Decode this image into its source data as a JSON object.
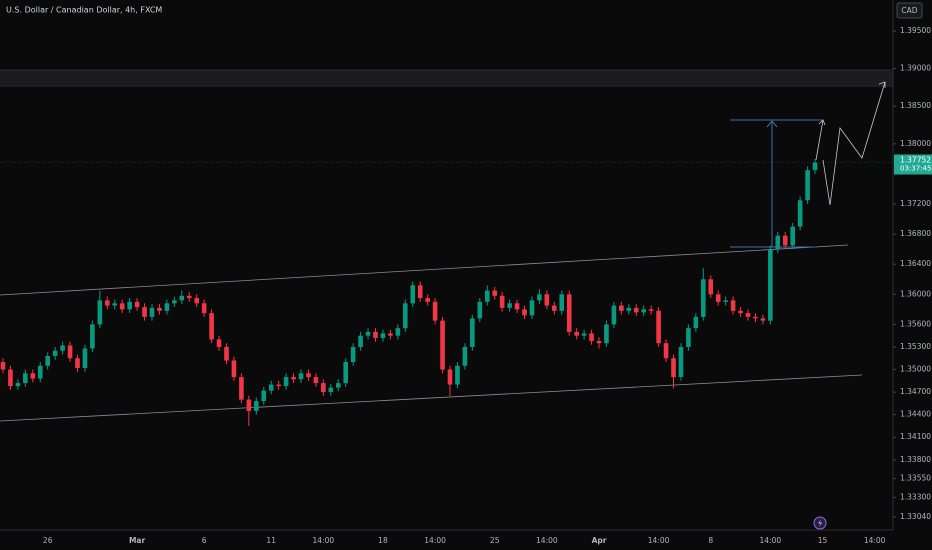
{
  "chart_data": {
    "type": "candlestick",
    "title": "U.S. Dollar / Canadian Dollar, 4h, FXCM",
    "currency": "CAD",
    "countdown": "03:37:45",
    "last_price": 1.37752,
    "up_color": "#089981",
    "down_color": "#f23645",
    "last_price_color": "#22ab94",
    "categories": [
      null,
      null,
      null,
      null,
      null,
      null,
      "26",
      null,
      null,
      null,
      null,
      null,
      null,
      null,
      null,
      null,
      null,
      null,
      "Mar",
      null,
      null,
      null,
      null,
      null,
      null,
      null,
      null,
      "6",
      null,
      null,
      null,
      null,
      null,
      null,
      null,
      null,
      "11",
      null,
      null,
      null,
      null,
      null,
      null,
      "14:00",
      null,
      null,
      null,
      null,
      null,
      null,
      null,
      "18",
      null,
      null,
      null,
      null,
      null,
      null,
      "14:00",
      null,
      null,
      null,
      null,
      null,
      null,
      null,
      "25",
      null,
      null,
      null,
      null,
      null,
      null,
      "14:00",
      null,
      null,
      null,
      null,
      null,
      null,
      "Apr",
      null,
      null,
      null,
      null,
      null,
      null,
      null,
      "14:00",
      null,
      null,
      null,
      null,
      null,
      null,
      "8",
      null,
      null,
      null,
      null,
      null,
      null,
      null,
      "14:00",
      null,
      null,
      null,
      null,
      null,
      null,
      "15",
      null,
      null,
      null,
      null,
      null,
      null,
      "14:00",
      null
    ],
    "open": [
      1.351,
      1.35,
      1.3478,
      1.3482,
      1.3495,
      1.3488,
      1.3505,
      1.3518,
      1.3525,
      1.3532,
      1.3515,
      1.3502,
      1.3528,
      1.356,
      1.3592,
      1.3585,
      1.3588,
      1.358,
      1.359,
      1.3583,
      1.357,
      1.3582,
      1.3578,
      1.3588,
      1.3592,
      1.3598,
      1.3595,
      1.3588,
      1.3575,
      1.354,
      1.353,
      1.3512,
      1.349,
      1.346,
      1.3445,
      1.3458,
      1.3472,
      1.348,
      1.3478,
      1.349,
      1.3487,
      1.3495,
      1.349,
      1.3482,
      1.347,
      1.3476,
      1.3482,
      1.351,
      1.353,
      1.3545,
      1.355,
      1.3542,
      1.3548,
      1.3545,
      1.3555,
      1.3588,
      1.3612,
      1.3595,
      1.359,
      1.3565,
      1.35,
      1.348,
      1.3505,
      1.353,
      1.3568,
      1.359,
      1.3605,
      1.3598,
      1.3582,
      1.3588,
      1.358,
      1.3572,
      1.3592,
      1.36,
      1.3585,
      1.3578,
      1.36,
      1.355,
      1.3545,
      1.3548,
      1.3538,
      1.3535,
      1.356,
      1.3585,
      1.3578,
      1.3582,
      1.3576,
      1.358,
      1.3578,
      1.3535,
      1.3515,
      1.349,
      1.353,
      1.3555,
      1.357,
      1.362,
      1.36,
      1.359,
      1.3592,
      1.3578,
      1.3575,
      1.357,
      1.3568,
      1.3565,
      1.366,
      1.3678,
      1.3665,
      1.369,
      1.3725,
      1.3765,
      null,
      null,
      null,
      null,
      null,
      null,
      null,
      null,
      null
    ],
    "high": [
      1.3515,
      1.3505,
      1.3487,
      1.35,
      1.35,
      1.351,
      1.3523,
      1.353,
      1.3537,
      1.3537,
      1.352,
      1.3533,
      1.3565,
      1.3605,
      1.3597,
      1.3593,
      1.3593,
      1.3595,
      1.3595,
      1.3588,
      1.3587,
      1.3587,
      1.3593,
      1.3597,
      1.3605,
      1.3603,
      1.36,
      1.3593,
      1.358,
      1.3545,
      1.3535,
      1.3517,
      1.3495,
      1.3465,
      1.3463,
      1.3477,
      1.3485,
      1.3485,
      1.3495,
      1.3495,
      1.35,
      1.35,
      1.3495,
      1.3487,
      1.3481,
      1.3487,
      1.3515,
      1.3535,
      1.355,
      1.3555,
      1.3555,
      1.3553,
      1.3553,
      1.356,
      1.3593,
      1.3617,
      1.3617,
      1.36,
      1.3595,
      1.357,
      1.3505,
      1.351,
      1.3535,
      1.3573,
      1.3595,
      1.3612,
      1.361,
      1.3603,
      1.3593,
      1.3593,
      1.3585,
      1.3597,
      1.3607,
      1.3605,
      1.359,
      1.3605,
      1.3605,
      1.3555,
      1.3553,
      1.3553,
      1.3543,
      1.3565,
      1.359,
      1.359,
      1.3587,
      1.3587,
      1.3585,
      1.3585,
      1.3583,
      1.354,
      1.352,
      1.3535,
      1.356,
      1.3575,
      1.3635,
      1.3625,
      1.3605,
      1.3597,
      1.3597,
      1.3583,
      1.358,
      1.3575,
      1.3573,
      1.3665,
      1.3683,
      1.3683,
      1.3695,
      1.373,
      1.377,
      1.378,
      null,
      null,
      null,
      null,
      null,
      null,
      null,
      null,
      null
    ],
    "low": [
      1.3495,
      1.3473,
      1.3473,
      1.3477,
      1.3483,
      1.3483,
      1.35,
      1.3513,
      1.352,
      1.351,
      1.3497,
      1.3497,
      1.3523,
      1.3555,
      1.358,
      1.358,
      1.3575,
      1.3575,
      1.3578,
      1.3565,
      1.3565,
      1.3573,
      1.3573,
      1.3583,
      1.3587,
      1.359,
      1.3583,
      1.357,
      1.3535,
      1.3525,
      1.3507,
      1.3485,
      1.3455,
      1.3425,
      1.344,
      1.3453,
      1.3467,
      1.3473,
      1.3473,
      1.3482,
      1.3482,
      1.3485,
      1.3477,
      1.3465,
      1.3465,
      1.3471,
      1.3477,
      1.3505,
      1.3525,
      1.354,
      1.3537,
      1.3537,
      1.354,
      1.354,
      1.355,
      1.3583,
      1.359,
      1.3585,
      1.356,
      1.3495,
      1.3465,
      1.3475,
      1.35,
      1.3525,
      1.3563,
      1.3585,
      1.3593,
      1.3577,
      1.3577,
      1.3575,
      1.3567,
      1.3567,
      1.3587,
      1.358,
      1.3573,
      1.3573,
      1.3545,
      1.354,
      1.354,
      1.3533,
      1.3528,
      1.353,
      1.3555,
      1.3573,
      1.3573,
      1.3571,
      1.3571,
      1.3573,
      1.353,
      1.351,
      1.3475,
      1.3485,
      1.3525,
      1.355,
      1.3565,
      1.3595,
      1.3585,
      1.3585,
      1.3573,
      1.357,
      1.3565,
      1.3563,
      1.356,
      1.356,
      1.3655,
      1.366,
      1.366,
      1.3685,
      1.372,
      1.376,
      null,
      null,
      null,
      null,
      null,
      null,
      null,
      null,
      null
    ],
    "close": [
      1.35,
      1.3478,
      1.3482,
      1.3495,
      1.3488,
      1.3505,
      1.3518,
      1.3525,
      1.3532,
      1.3515,
      1.3502,
      1.3528,
      1.356,
      1.3592,
      1.3585,
      1.3588,
      1.358,
      1.359,
      1.3583,
      1.357,
      1.3582,
      1.3578,
      1.3588,
      1.3592,
      1.3598,
      1.3595,
      1.3588,
      1.3575,
      1.354,
      1.353,
      1.3512,
      1.349,
      1.346,
      1.3445,
      1.3458,
      1.3472,
      1.348,
      1.3478,
      1.349,
      1.3487,
      1.3495,
      1.349,
      1.3482,
      1.347,
      1.3476,
      1.3482,
      1.351,
      1.353,
      1.3545,
      1.355,
      1.3542,
      1.3548,
      1.3545,
      1.3555,
      1.3588,
      1.3612,
      1.3595,
      1.359,
      1.3565,
      1.35,
      1.348,
      1.3505,
      1.353,
      1.3568,
      1.359,
      1.3605,
      1.3598,
      1.3582,
      1.3588,
      1.358,
      1.3572,
      1.3592,
      1.36,
      1.3585,
      1.3578,
      1.36,
      1.355,
      1.3545,
      1.3548,
      1.3538,
      1.3535,
      1.356,
      1.3585,
      1.3578,
      1.3582,
      1.3576,
      1.358,
      1.3578,
      1.3535,
      1.3515,
      1.349,
      1.353,
      1.3555,
      1.357,
      1.362,
      1.36,
      1.359,
      1.3592,
      1.3578,
      1.3575,
      1.357,
      1.3568,
      1.3565,
      1.366,
      1.3678,
      1.3665,
      1.369,
      1.3725,
      1.3765,
      1.3775,
      null,
      null,
      null,
      null,
      null,
      null,
      null,
      null,
      null
    ],
    "ylim": [
      1.32867,
      1.39912
    ],
    "yticks": [
      {
        "value": 1.395,
        "label": "1.39500"
      },
      {
        "value": 1.39,
        "label": "1.39000"
      },
      {
        "value": 1.385,
        "label": "1.38500"
      },
      {
        "value": 1.38,
        "label": "1.38000"
      },
      {
        "value": 1.372,
        "label": "1.37200"
      },
      {
        "value": 1.368,
        "label": "1.36800"
      },
      {
        "value": 1.364,
        "label": "1.36400"
      },
      {
        "value": 1.36,
        "label": "1.36000"
      },
      {
        "value": 1.356,
        "label": "1.35600"
      },
      {
        "value": 1.353,
        "label": "1.35300"
      },
      {
        "value": 1.35,
        "label": "1.35000"
      },
      {
        "value": 1.347,
        "label": "1.34700"
      },
      {
        "value": 1.344,
        "label": "1.34400"
      },
      {
        "value": 1.341,
        "label": "1.34100"
      },
      {
        "value": 1.338,
        "label": "1.33800"
      },
      {
        "value": 1.3355,
        "label": "1.33550"
      },
      {
        "value": 1.333,
        "label": "1.33300"
      },
      {
        "value": 1.3304,
        "label": "1.33040"
      }
    ]
  }
}
